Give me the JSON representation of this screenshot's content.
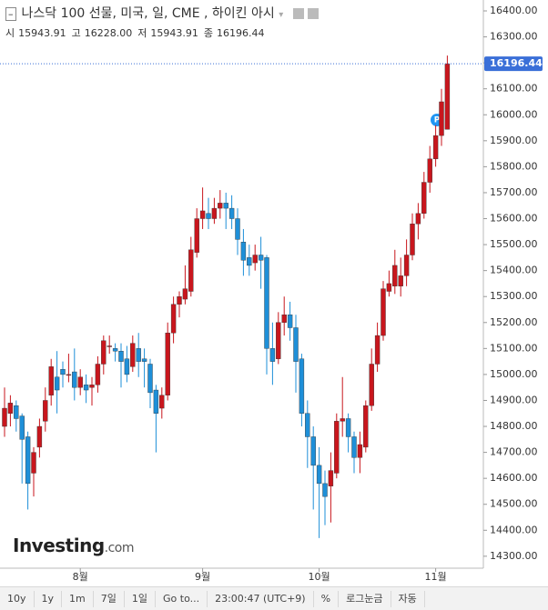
{
  "header": {
    "title": "나스닥 100 선물, 미국, 일, CME , 하이킨 아시",
    "ohlc": [
      {
        "label": "시",
        "value": "15943.91"
      },
      {
        "label": "고",
        "value": "16228.00"
      },
      {
        "label": "저",
        "value": "15943.91"
      },
      {
        "label": "종",
        "value": "16196.44"
      }
    ]
  },
  "logo": {
    "name": "Investing",
    "suffix": ".com"
  },
  "toolbar": [
    "10y",
    "1y",
    "1m",
    "7일",
    "1일",
    "Go to...",
    "23:00:47 (UTC+9)",
    "%",
    "로그눈금",
    "자동"
  ],
  "chart_data": {
    "type": "candlestick",
    "categories": [
      null,
      null,
      null,
      null,
      null,
      null,
      null,
      null,
      null,
      null,
      null,
      null,
      null,
      "8월",
      null,
      null,
      null,
      null,
      null,
      null,
      null,
      null,
      null,
      null,
      null,
      null,
      null,
      null,
      null,
      null,
      null,
      null,
      null,
      null,
      "9월",
      null,
      null,
      null,
      null,
      null,
      null,
      null,
      null,
      null,
      null,
      null,
      null,
      null,
      null,
      null,
      null,
      null,
      null,
      null,
      "10월",
      null,
      null,
      null,
      null,
      null,
      null,
      null,
      null,
      null,
      null,
      null,
      null,
      null,
      null,
      null,
      null,
      null,
      null,
      null,
      "11월",
      null,
      null
    ],
    "open": [
      14800,
      14850,
      14880,
      14840,
      14760,
      14620,
      14720,
      14820,
      14920,
      14990,
      15020,
      15000,
      15010,
      14950,
      14960,
      14950,
      14960,
      15040,
      15110,
      15100,
      15090,
      15060,
      15030,
      15100,
      15060,
      15040,
      14940,
      14870,
      14920,
      15160,
      15270,
      15290,
      15320,
      15470,
      15600,
      15620,
      15600,
      15640,
      15660,
      15640,
      15600,
      15510,
      15450,
      15430,
      15460,
      15450,
      15100,
      15060,
      15200,
      15230,
      15180,
      15060,
      14850,
      14760,
      14650,
      14580,
      14570,
      14620,
      14820,
      14830,
      14760,
      14680,
      14720,
      14880,
      15040,
      15150,
      15320,
      15340,
      15340,
      15380,
      15460,
      15580,
      15620,
      15740,
      15830,
      15920,
      15943.91
    ],
    "high": [
      14950,
      14920,
      14900,
      14850,
      14780,
      14720,
      14830,
      14950,
      15060,
      15090,
      15050,
      15080,
      15100,
      15020,
      15000,
      14990,
      15070,
      15150,
      15150,
      15120,
      15120,
      15110,
      15150,
      15160,
      15100,
      15060,
      14960,
      14950,
      15200,
      15300,
      15320,
      15420,
      15530,
      15640,
      15720,
      15680,
      15680,
      15710,
      15700,
      15690,
      15640,
      15560,
      15500,
      15500,
      15530,
      15460,
      15200,
      15240,
      15300,
      15280,
      15230,
      15080,
      14900,
      14800,
      14720,
      14630,
      14700,
      14850,
      14990,
      14850,
      14780,
      14780,
      14900,
      15100,
      15200,
      15360,
      15400,
      15480,
      15450,
      15520,
      15620,
      15660,
      15780,
      15880,
      15960,
      16100,
      16228
    ],
    "low": [
      14760,
      14800,
      14780,
      14580,
      14480,
      14530,
      14680,
      14780,
      14880,
      14850,
      14950,
      14970,
      14900,
      14920,
      14890,
      14880,
      14930,
      15000,
      15080,
      15050,
      14950,
      14970,
      15010,
      14990,
      14950,
      14870,
      14700,
      14830,
      14900,
      15120,
      15220,
      15270,
      15300,
      15450,
      15560,
      15560,
      15580,
      15600,
      15560,
      15560,
      15460,
      15380,
      15380,
      15400,
      15330,
      15000,
      14960,
      15040,
      15150,
      15130,
      14930,
      14800,
      14640,
      14480,
      14370,
      14420,
      14430,
      14600,
      14760,
      14700,
      14620,
      14620,
      14700,
      14860,
      15010,
      15130,
      15300,
      15310,
      15300,
      15340,
      15440,
      15520,
      15600,
      15700,
      15800,
      15880,
      15943.91
    ],
    "close": [
      14870,
      14890,
      14830,
      14750,
      14580,
      14700,
      14800,
      14900,
      15030,
      14940,
      15000,
      15000,
      14950,
      14990,
      14940,
      14960,
      15040,
      15130,
      15110,
      15090,
      15050,
      15000,
      15120,
      15050,
      15050,
      14930,
      14850,
      14920,
      15160,
      15270,
      15300,
      15330,
      15480,
      15600,
      15630,
      15600,
      15640,
      15660,
      15640,
      15600,
      15520,
      15440,
      15420,
      15460,
      15440,
      15100,
      15050,
      15200,
      15230,
      15180,
      15050,
      14850,
      14760,
      14650,
      14580,
      14530,
      14630,
      14820,
      14830,
      14760,
      14680,
      14730,
      14880,
      15040,
      15150,
      15330,
      15350,
      15420,
      15380,
      15460,
      15580,
      15620,
      15740,
      15830,
      15920,
      16050,
      16196.44
    ],
    "up_color": "#c8161d",
    "down_color": "#1e8fd8",
    "last_price": {
      "value": 16196.44,
      "label": "16196.44"
    },
    "last_price_color": "#3a6fd8",
    "ylim": [
      14254,
      16442
    ],
    "yticks": [
      {
        "value": 14300,
        "label": "14300.00"
      },
      {
        "value": 14400,
        "label": "14400.00"
      },
      {
        "value": 14500,
        "label": "14500.00"
      },
      {
        "value": 14600,
        "label": "14600.00"
      },
      {
        "value": 14700,
        "label": "14700.00"
      },
      {
        "value": 14800,
        "label": "14800.00"
      },
      {
        "value": 14900,
        "label": "14900.00"
      },
      {
        "value": 15000,
        "label": "15000.00"
      },
      {
        "value": 15100,
        "label": "15100.00"
      },
      {
        "value": 15200,
        "label": "15200.00"
      },
      {
        "value": 15300,
        "label": "15300.00"
      },
      {
        "value": 15400,
        "label": "15400.00"
      },
      {
        "value": 15500,
        "label": "15500.00"
      },
      {
        "value": 15600,
        "label": "15600.00"
      },
      {
        "value": 15700,
        "label": "15700.00"
      },
      {
        "value": 15800,
        "label": "15800.00"
      },
      {
        "value": 15900,
        "label": "15900.00"
      },
      {
        "value": 16000,
        "label": "16000.00"
      },
      {
        "value": 16100,
        "label": "16100.00"
      },
      {
        "value": 16200,
        "label": "16200.00"
      },
      {
        "value": 16300,
        "label": "16300.00"
      },
      {
        "value": 16400,
        "label": "16400.00"
      }
    ],
    "grid": false
  }
}
